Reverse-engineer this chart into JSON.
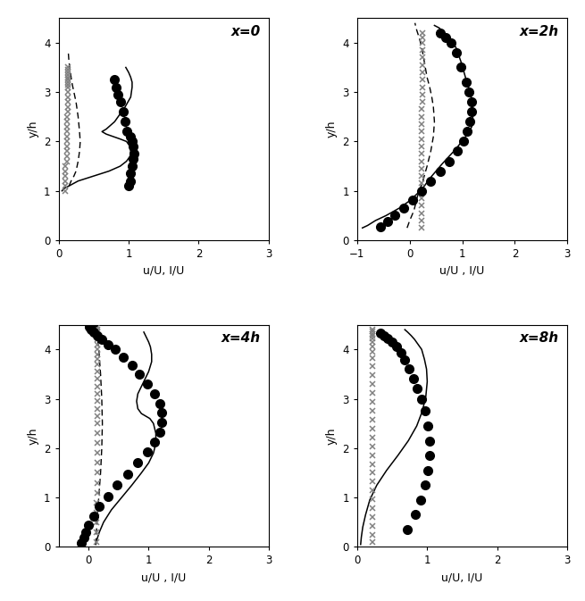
{
  "panels": [
    {
      "title": "x=0",
      "xlim": [
        0,
        3
      ],
      "xticks": [
        0,
        1,
        2,
        3
      ],
      "xlabel": "u/U, I/U",
      "ylabel": "y/h",
      "ylim": [
        0,
        4.5
      ],
      "yticks": [
        0,
        1,
        2,
        3,
        4
      ],
      "solid_x": [
        0.05,
        0.08,
        0.15,
        0.28,
        0.5,
        0.72,
        0.88,
        0.97,
        1.02,
        1.03,
        1.02,
        0.97,
        0.88,
        0.78,
        0.68,
        0.62,
        0.68,
        0.8,
        0.95,
        1.03,
        1.05,
        1.05,
        1.03,
        1.0,
        0.96
      ],
      "solid_y": [
        1.0,
        1.05,
        1.1,
        1.2,
        1.3,
        1.4,
        1.5,
        1.6,
        1.7,
        1.8,
        1.9,
        2.0,
        2.05,
        2.1,
        2.15,
        2.2,
        2.25,
        2.4,
        2.7,
        2.9,
        3.1,
        3.2,
        3.3,
        3.4,
        3.5
      ],
      "dashed_x": [
        0.15,
        0.18,
        0.22,
        0.25,
        0.28,
        0.3,
        0.31,
        0.3,
        0.28,
        0.25,
        0.22,
        0.19,
        0.17,
        0.15,
        0.14
      ],
      "dashed_y": [
        1.1,
        1.2,
        1.3,
        1.4,
        1.6,
        1.8,
        2.0,
        2.2,
        2.5,
        2.8,
        3.0,
        3.2,
        3.4,
        3.6,
        3.8
      ],
      "cross_x": [
        0.1,
        0.1,
        0.1,
        0.1,
        0.1,
        0.1,
        0.12,
        0.12,
        0.12,
        0.12,
        0.12,
        0.12,
        0.12,
        0.12,
        0.12,
        0.12,
        0.13,
        0.13,
        0.13,
        0.13,
        0.13,
        0.13,
        0.13,
        0.13,
        0.13,
        0.13,
        0.13,
        0.13,
        0.13,
        0.13
      ],
      "cross_y": [
        1.0,
        1.1,
        1.2,
        1.3,
        1.4,
        1.5,
        1.6,
        1.7,
        1.8,
        1.9,
        2.0,
        2.1,
        2.2,
        2.3,
        2.4,
        2.5,
        2.6,
        2.7,
        2.8,
        2.9,
        3.0,
        3.1,
        3.15,
        3.2,
        3.25,
        3.3,
        3.35,
        3.4,
        3.45,
        3.5
      ],
      "dot_x": [
        1.0,
        1.02,
        1.03,
        1.05,
        1.07,
        1.08,
        1.07,
        1.05,
        1.02,
        0.98,
        0.95,
        0.92,
        0.88,
        0.85,
        0.82,
        0.8
      ],
      "dot_y": [
        1.1,
        1.2,
        1.35,
        1.5,
        1.65,
        1.75,
        1.9,
        2.0,
        2.1,
        2.2,
        2.4,
        2.6,
        2.8,
        2.95,
        3.1,
        3.25
      ]
    },
    {
      "title": "x=2h",
      "xlim": [
        -1,
        3
      ],
      "xticks": [
        -1,
        0,
        1,
        2,
        3
      ],
      "xlabel": "u/U , I/U",
      "ylabel": "y/h",
      "ylim": [
        0,
        4.5
      ],
      "yticks": [
        0,
        1,
        2,
        3,
        4
      ],
      "solid_x": [
        -0.9,
        -0.8,
        -0.65,
        -0.45,
        -0.2,
        0.0,
        0.15,
        0.28,
        0.38,
        0.5,
        0.62,
        0.75,
        0.88,
        0.99,
        1.1,
        1.18,
        1.2,
        1.2,
        1.17,
        1.12,
        1.06,
        0.98,
        0.88,
        0.77,
        0.66,
        0.56,
        0.47
      ],
      "solid_y": [
        0.25,
        0.3,
        0.4,
        0.5,
        0.65,
        0.8,
        0.95,
        1.1,
        1.25,
        1.4,
        1.55,
        1.7,
        1.85,
        2.0,
        2.15,
        2.3,
        2.5,
        2.7,
        2.9,
        3.1,
        3.3,
        3.6,
        3.9,
        4.1,
        4.2,
        4.3,
        4.35
      ],
      "dashed_x": [
        -0.05,
        0.0,
        0.08,
        0.15,
        0.25,
        0.33,
        0.4,
        0.45,
        0.47,
        0.45,
        0.42,
        0.38,
        0.33,
        0.28,
        0.23,
        0.18,
        0.15,
        0.12,
        0.1
      ],
      "dashed_y": [
        0.25,
        0.4,
        0.6,
        0.9,
        1.2,
        1.5,
        1.8,
        2.1,
        2.4,
        2.7,
        2.9,
        3.1,
        3.3,
        3.6,
        3.9,
        4.1,
        4.2,
        4.3,
        4.4
      ],
      "cross_x": [
        0.22,
        0.22,
        0.22,
        0.23,
        0.23,
        0.23,
        0.23,
        0.23,
        0.23,
        0.23,
        0.23,
        0.23,
        0.23,
        0.23,
        0.23,
        0.23,
        0.23,
        0.24,
        0.24,
        0.24,
        0.24,
        0.24,
        0.24,
        0.24,
        0.24,
        0.25,
        0.25,
        0.25
      ],
      "cross_y": [
        0.25,
        0.4,
        0.55,
        0.7,
        0.85,
        1.0,
        1.15,
        1.3,
        1.45,
        1.6,
        1.75,
        1.9,
        2.05,
        2.2,
        2.35,
        2.5,
        2.65,
        2.8,
        2.95,
        3.1,
        3.25,
        3.4,
        3.55,
        3.7,
        3.85,
        4.0,
        4.1,
        4.2
      ],
      "dot_x": [
        -0.55,
        -0.42,
        -0.28,
        -0.12,
        0.05,
        0.22,
        0.4,
        0.58,
        0.75,
        0.9,
        1.02,
        1.1,
        1.15,
        1.18,
        1.17,
        1.13,
        1.07,
        0.98,
        0.88,
        0.78,
        0.68,
        0.58
      ],
      "dot_y": [
        0.28,
        0.38,
        0.5,
        0.65,
        0.82,
        1.0,
        1.2,
        1.4,
        1.6,
        1.8,
        2.0,
        2.2,
        2.4,
        2.6,
        2.8,
        3.0,
        3.2,
        3.5,
        3.8,
        4.0,
        4.1,
        4.2
      ]
    },
    {
      "title": "x=4h",
      "xlim": [
        -0.5,
        3
      ],
      "xticks": [
        0,
        1,
        2,
        3
      ],
      "xlabel": "u/U , I/U",
      "ylabel": "y/h",
      "ylim": [
        0,
        4.5
      ],
      "yticks": [
        0,
        1,
        2,
        3,
        4
      ],
      "solid_x": [
        0.12,
        0.14,
        0.18,
        0.25,
        0.38,
        0.55,
        0.72,
        0.88,
        1.0,
        1.08,
        1.12,
        1.12,
        1.08,
        1.02,
        0.95,
        0.88,
        0.82,
        0.8,
        0.82,
        0.9,
        1.0,
        1.05,
        1.05,
        1.03,
        1.0,
        0.96,
        0.92
      ],
      "solid_y": [
        0.05,
        0.15,
        0.3,
        0.5,
        0.75,
        1.0,
        1.25,
        1.5,
        1.7,
        1.9,
        2.1,
        2.3,
        2.5,
        2.6,
        2.65,
        2.7,
        2.8,
        2.95,
        3.1,
        3.3,
        3.55,
        3.75,
        3.9,
        4.05,
        4.15,
        4.25,
        4.35
      ],
      "dashed_x": [
        0.12,
        0.14,
        0.17,
        0.2,
        0.22,
        0.23,
        0.22,
        0.2,
        0.17,
        0.15,
        0.13,
        0.12,
        0.11
      ],
      "dashed_y": [
        0.05,
        0.5,
        1.0,
        1.5,
        2.0,
        2.5,
        3.0,
        3.5,
        4.0,
        4.2,
        4.3,
        4.4,
        4.5
      ],
      "cross_x": [
        0.13,
        0.13,
        0.13,
        0.13,
        0.13,
        0.14,
        0.14,
        0.14,
        0.14,
        0.14,
        0.14,
        0.14,
        0.15,
        0.15,
        0.15,
        0.15,
        0.15,
        0.15,
        0.15,
        0.15,
        0.15,
        0.15,
        0.15,
        0.15,
        0.15,
        0.15,
        0.15,
        0.15,
        0.15,
        0.15
      ],
      "cross_y": [
        0.1,
        0.3,
        0.5,
        0.7,
        0.9,
        1.1,
        1.3,
        1.5,
        1.7,
        1.9,
        2.1,
        2.3,
        2.5,
        2.65,
        2.8,
        2.95,
        3.1,
        3.25,
        3.4,
        3.55,
        3.7,
        3.8,
        3.9,
        4.0,
        4.1,
        4.2,
        4.3,
        4.35,
        4.4,
        4.45
      ],
      "dot_x": [
        -0.12,
        -0.08,
        -0.05,
        0.0,
        0.08,
        0.18,
        0.32,
        0.48,
        0.65,
        0.82,
        0.98,
        1.1,
        1.18,
        1.22,
        1.22,
        1.18,
        1.1,
        0.98,
        0.85,
        0.72,
        0.58,
        0.44,
        0.32,
        0.22,
        0.14,
        0.08,
        0.04,
        0.02,
        0.03,
        0.08,
        0.15
      ],
      "dot_y": [
        0.08,
        0.18,
        0.3,
        0.45,
        0.62,
        0.82,
        1.02,
        1.25,
        1.48,
        1.7,
        1.92,
        2.12,
        2.32,
        2.52,
        2.72,
        2.9,
        3.1,
        3.3,
        3.5,
        3.68,
        3.85,
        4.0,
        4.1,
        4.2,
        4.28,
        4.35,
        4.4,
        4.45,
        4.5,
        4.55,
        4.6
      ]
    },
    {
      "title": "x=8h",
      "xlim": [
        0,
        3
      ],
      "xticks": [
        0,
        1,
        2,
        3
      ],
      "xlabel": "u/U, I/U",
      "ylabel": "y/h",
      "ylim": [
        0,
        4.5
      ],
      "yticks": [
        0,
        1,
        2,
        3,
        4
      ],
      "solid_x": [
        0.05,
        0.06,
        0.08,
        0.12,
        0.18,
        0.28,
        0.42,
        0.58,
        0.73,
        0.85,
        0.93,
        0.98,
        1.0,
        0.99,
        0.96,
        0.92,
        0.87,
        0.82,
        0.77,
        0.72,
        0.68
      ],
      "solid_y": [
        0.05,
        0.2,
        0.4,
        0.65,
        0.95,
        1.25,
        1.55,
        1.85,
        2.15,
        2.45,
        2.75,
        3.05,
        3.35,
        3.6,
        3.8,
        4.0,
        4.1,
        4.2,
        4.28,
        4.35,
        4.4
      ],
      "dashed_x": [],
      "dashed_y": [],
      "cross_x": [
        0.22,
        0.22,
        0.22,
        0.22,
        0.22,
        0.22,
        0.22,
        0.22,
        0.22,
        0.22,
        0.22,
        0.22,
        0.22,
        0.22,
        0.22,
        0.22,
        0.22,
        0.22,
        0.22,
        0.22,
        0.22,
        0.22,
        0.22,
        0.22,
        0.22,
        0.22,
        0.22,
        0.22,
        0.22,
        0.22
      ],
      "cross_y": [
        0.1,
        0.25,
        0.42,
        0.6,
        0.78,
        0.96,
        1.14,
        1.32,
        1.5,
        1.68,
        1.86,
        2.04,
        2.22,
        2.4,
        2.58,
        2.76,
        2.94,
        3.12,
        3.3,
        3.48,
        3.66,
        3.82,
        3.95,
        4.05,
        4.15,
        4.22,
        4.28,
        4.32,
        4.36,
        4.4
      ],
      "dot_x": [
        0.72,
        0.83,
        0.91,
        0.97,
        1.01,
        1.03,
        1.03,
        1.01,
        0.97,
        0.92,
        0.86,
        0.8,
        0.74,
        0.68,
        0.62,
        0.56,
        0.5,
        0.44,
        0.38,
        0.33
      ],
      "dot_y": [
        0.35,
        0.65,
        0.95,
        1.25,
        1.55,
        1.85,
        2.15,
        2.45,
        2.75,
        3.0,
        3.2,
        3.4,
        3.6,
        3.78,
        3.93,
        4.05,
        4.14,
        4.22,
        4.28,
        4.33
      ]
    }
  ]
}
